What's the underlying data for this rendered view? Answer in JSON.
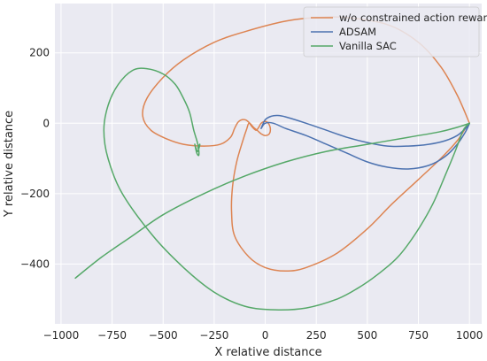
{
  "chart_data": {
    "type": "line",
    "xlabel": "X relative distance",
    "ylabel": "Y relative distance",
    "xlim": [
      -1030,
      1060
    ],
    "ylim": [
      -570,
      340
    ],
    "xticks": [
      -1000,
      -750,
      -500,
      -250,
      0,
      250,
      500,
      750,
      1000
    ],
    "yticks": [
      -400,
      -200,
      0,
      200
    ],
    "grid": true,
    "legend": "top-right",
    "background": "#eaeaf2",
    "series": [
      {
        "name": "w/o constrained action reward",
        "color": "#dd8452",
        "points": [
          [
            1000,
            0
          ],
          [
            940,
            80
          ],
          [
            860,
            160
          ],
          [
            750,
            230
          ],
          [
            600,
            280
          ],
          [
            400,
            300
          ],
          [
            250,
            300
          ],
          [
            100,
            290
          ],
          [
            -100,
            260
          ],
          [
            -250,
            230
          ],
          [
            -400,
            180
          ],
          [
            -500,
            130
          ],
          [
            -580,
            70
          ],
          [
            -600,
            20
          ],
          [
            -560,
            -20
          ],
          [
            -480,
            -45
          ],
          [
            -400,
            -60
          ],
          [
            -300,
            -65
          ],
          [
            -220,
            -60
          ],
          [
            -170,
            -40
          ],
          [
            -150,
            -15
          ],
          [
            -130,
            5
          ],
          [
            -100,
            10
          ],
          [
            -75,
            0
          ],
          [
            -60,
            -10
          ],
          [
            -40,
            -20
          ],
          [
            -20,
            -30
          ],
          [
            0,
            -35
          ],
          [
            20,
            -30
          ],
          [
            25,
            -15
          ],
          [
            15,
            0
          ],
          [
            0,
            5
          ],
          [
            -20,
            0
          ],
          [
            -30,
            -10
          ],
          [
            -45,
            -20
          ],
          [
            -65,
            -10
          ],
          [
            -80,
            0
          ],
          [
            -90,
            -15
          ],
          [
            -110,
            -50
          ],
          [
            -140,
            -110
          ],
          [
            -160,
            -180
          ],
          [
            -165,
            -250
          ],
          [
            -150,
            -320
          ],
          [
            -80,
            -380
          ],
          [
            0,
            -410
          ],
          [
            100,
            -420
          ],
          [
            200,
            -410
          ],
          [
            350,
            -370
          ],
          [
            500,
            -300
          ],
          [
            620,
            -230
          ],
          [
            750,
            -160
          ],
          [
            860,
            -100
          ],
          [
            940,
            -50
          ],
          [
            980,
            -15
          ],
          [
            1000,
            0
          ]
        ]
      },
      {
        "name": "ADSAM",
        "color": "#4c72b0",
        "points": [
          [
            -20,
            -15
          ],
          [
            0,
            10
          ],
          [
            30,
            20
          ],
          [
            60,
            22
          ],
          [
            100,
            18
          ],
          [
            200,
            0
          ],
          [
            300,
            -20
          ],
          [
            400,
            -40
          ],
          [
            500,
            -55
          ],
          [
            600,
            -65
          ],
          [
            700,
            -65
          ],
          [
            800,
            -60
          ],
          [
            880,
            -50
          ],
          [
            940,
            -35
          ],
          [
            980,
            -15
          ],
          [
            1000,
            0
          ],
          [
            980,
            -25
          ],
          [
            940,
            -60
          ],
          [
            880,
            -95
          ],
          [
            800,
            -120
          ],
          [
            700,
            -130
          ],
          [
            600,
            -125
          ],
          [
            500,
            -110
          ],
          [
            400,
            -85
          ],
          [
            300,
            -60
          ],
          [
            200,
            -35
          ],
          [
            100,
            -15
          ],
          [
            40,
            0
          ],
          [
            0,
            0
          ],
          [
            -20,
            -15
          ]
        ]
      },
      {
        "name": "Vanilla SAC",
        "color": "#55a868",
        "points": [
          [
            1000,
            0
          ],
          [
            970,
            -20
          ],
          [
            930,
            -80
          ],
          [
            880,
            -150
          ],
          [
            820,
            -230
          ],
          [
            740,
            -310
          ],
          [
            650,
            -380
          ],
          [
            550,
            -430
          ],
          [
            450,
            -470
          ],
          [
            350,
            -500
          ],
          [
            200,
            -525
          ],
          [
            50,
            -530
          ],
          [
            -100,
            -520
          ],
          [
            -250,
            -480
          ],
          [
            -400,
            -410
          ],
          [
            -550,
            -320
          ],
          [
            -700,
            -200
          ],
          [
            -770,
            -100
          ],
          [
            -790,
            -20
          ],
          [
            -770,
            50
          ],
          [
            -720,
            110
          ],
          [
            -650,
            150
          ],
          [
            -580,
            155
          ],
          [
            -500,
            140
          ],
          [
            -440,
            110
          ],
          [
            -400,
            70
          ],
          [
            -370,
            30
          ],
          [
            -350,
            -20
          ],
          [
            -330,
            -60
          ],
          [
            -325,
            -90
          ],
          [
            -335,
            -85
          ],
          [
            -345,
            -60
          ],
          [
            -340,
            -70
          ],
          [
            -330,
            -80
          ],
          [
            -320,
            -60
          ],
          [
            -330,
            -70
          ]
        ]
      },
      {
        "name": "",
        "color": "#55a868",
        "points": [
          [
            -930,
            -440
          ],
          [
            -800,
            -380
          ],
          [
            -650,
            -320
          ],
          [
            -500,
            -260
          ],
          [
            -300,
            -200
          ],
          [
            -100,
            -150
          ],
          [
            100,
            -110
          ],
          [
            300,
            -80
          ],
          [
            500,
            -60
          ],
          [
            700,
            -40
          ],
          [
            850,
            -25
          ],
          [
            950,
            -10
          ],
          [
            1000,
            0
          ]
        ]
      }
    ]
  }
}
